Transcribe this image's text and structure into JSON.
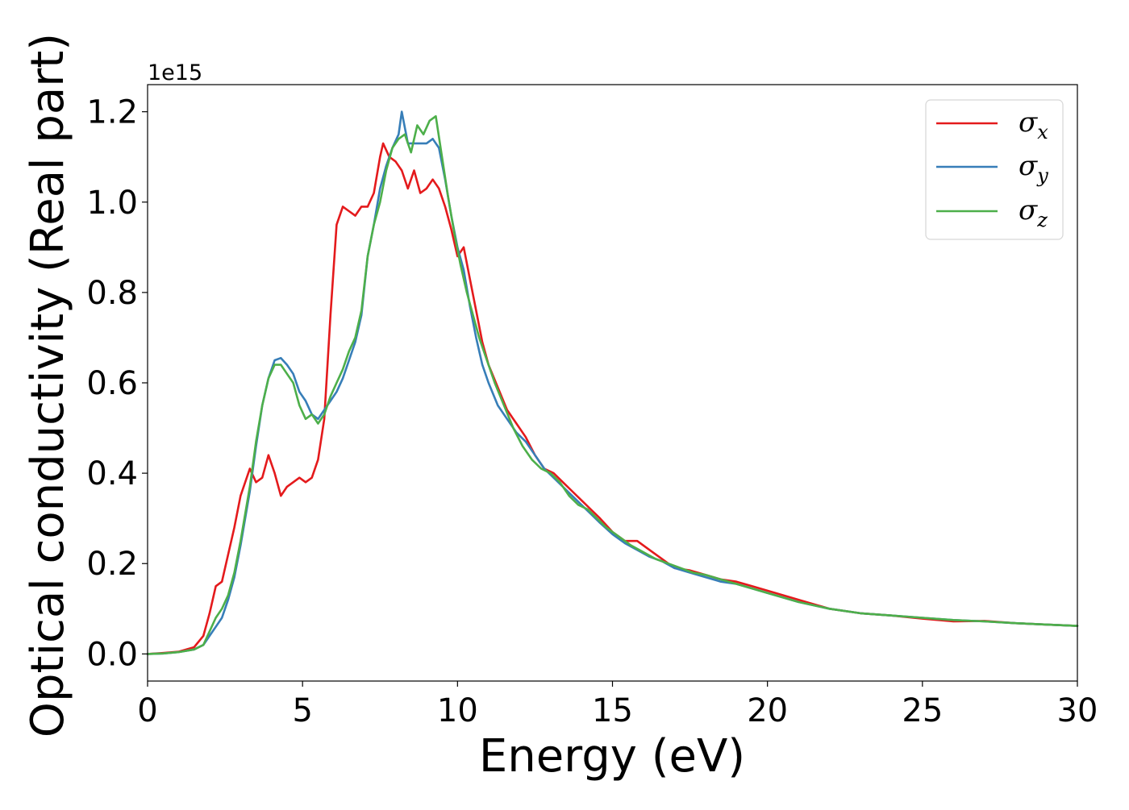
{
  "chart_data": {
    "type": "line",
    "xlabel": "Energy (eV)",
    "ylabel": "Optical conductivity (Real part)",
    "offset_text": "1e15",
    "xlim": [
      0,
      30
    ],
    "ylim": [
      -0.06,
      1.26
    ],
    "x_ticks": [
      0,
      5,
      10,
      15,
      20,
      25,
      30
    ],
    "x_tick_labels": [
      "0",
      "5",
      "10",
      "15",
      "20",
      "25",
      "30"
    ],
    "y_ticks": [
      0.0,
      0.2,
      0.4,
      0.6,
      0.8,
      1.0,
      1.2
    ],
    "y_tick_labels": [
      "0.0",
      "0.2",
      "0.4",
      "0.6",
      "0.8",
      "1.0",
      "1.2"
    ],
    "grid": false,
    "legend_position": "top-right",
    "series": [
      {
        "name": "σx",
        "symbol": "σ",
        "subscript": "x",
        "color": "#e41a1c",
        "x": [
          0,
          0.5,
          1.0,
          1.5,
          1.8,
          2.0,
          2.2,
          2.4,
          2.6,
          2.8,
          3.0,
          3.3,
          3.5,
          3.7,
          3.9,
          4.1,
          4.3,
          4.5,
          4.7,
          4.9,
          5.1,
          5.3,
          5.5,
          5.7,
          5.9,
          6.1,
          6.3,
          6.5,
          6.7,
          6.9,
          7.1,
          7.3,
          7.5,
          7.6,
          7.8,
          8.0,
          8.2,
          8.4,
          8.6,
          8.8,
          9.0,
          9.2,
          9.4,
          9.6,
          9.8,
          10.0,
          10.2,
          10.4,
          10.6,
          10.8,
          11.0,
          11.3,
          11.6,
          11.9,
          12.2,
          12.5,
          12.8,
          13.1,
          13.4,
          13.7,
          14.0,
          14.3,
          14.6,
          15.0,
          15.4,
          15.8,
          16.2,
          16.6,
          17.0,
          17.5,
          18.0,
          18.5,
          19.0,
          19.5,
          20.0,
          21.0,
          22.0,
          23.0,
          24.0,
          25.0,
          26.0,
          27.0,
          28.0,
          29.0,
          30.0
        ],
        "y": [
          0.0,
          0.002,
          0.005,
          0.015,
          0.04,
          0.09,
          0.15,
          0.16,
          0.22,
          0.28,
          0.35,
          0.41,
          0.38,
          0.39,
          0.44,
          0.4,
          0.35,
          0.37,
          0.38,
          0.39,
          0.38,
          0.39,
          0.43,
          0.52,
          0.75,
          0.95,
          0.99,
          0.98,
          0.97,
          0.99,
          0.99,
          1.02,
          1.1,
          1.13,
          1.1,
          1.09,
          1.07,
          1.03,
          1.07,
          1.02,
          1.03,
          1.05,
          1.03,
          0.99,
          0.94,
          0.88,
          0.9,
          0.83,
          0.76,
          0.69,
          0.64,
          0.59,
          0.54,
          0.51,
          0.48,
          0.44,
          0.41,
          0.4,
          0.38,
          0.36,
          0.34,
          0.32,
          0.3,
          0.27,
          0.25,
          0.25,
          0.23,
          0.21,
          0.19,
          0.185,
          0.175,
          0.165,
          0.16,
          0.15,
          0.14,
          0.12,
          0.1,
          0.09,
          0.085,
          0.078,
          0.072,
          0.073,
          0.068,
          0.065,
          0.062
        ]
      },
      {
        "name": "σy",
        "symbol": "σ",
        "subscript": "y",
        "color": "#377eb8",
        "x": [
          0,
          0.5,
          1.0,
          1.5,
          1.8,
          2.0,
          2.2,
          2.4,
          2.6,
          2.8,
          3.0,
          3.3,
          3.5,
          3.7,
          3.9,
          4.1,
          4.3,
          4.5,
          4.7,
          4.9,
          5.1,
          5.3,
          5.5,
          5.7,
          5.9,
          6.1,
          6.3,
          6.5,
          6.7,
          6.9,
          7.1,
          7.3,
          7.5,
          7.7,
          7.9,
          8.1,
          8.2,
          8.4,
          8.6,
          8.8,
          9.0,
          9.2,
          9.4,
          9.6,
          9.8,
          10.0,
          10.2,
          10.4,
          10.6,
          10.8,
          11.0,
          11.3,
          11.6,
          11.9,
          12.2,
          12.5,
          12.8,
          13.1,
          13.4,
          13.7,
          14.0,
          14.3,
          14.6,
          15.0,
          15.4,
          15.8,
          16.2,
          16.6,
          17.0,
          17.5,
          18.0,
          18.5,
          19.0,
          19.5,
          20.0,
          21.0,
          22.0,
          23.0,
          24.0,
          25.0,
          26.0,
          27.0,
          28.0,
          29.0,
          30.0
        ],
        "y": [
          0.0,
          0.001,
          0.004,
          0.01,
          0.02,
          0.04,
          0.06,
          0.08,
          0.12,
          0.17,
          0.24,
          0.36,
          0.46,
          0.55,
          0.61,
          0.65,
          0.655,
          0.64,
          0.62,
          0.58,
          0.56,
          0.53,
          0.52,
          0.54,
          0.56,
          0.58,
          0.61,
          0.65,
          0.69,
          0.75,
          0.88,
          0.95,
          1.03,
          1.08,
          1.12,
          1.15,
          1.2,
          1.13,
          1.13,
          1.13,
          1.13,
          1.14,
          1.12,
          1.05,
          0.97,
          0.9,
          0.85,
          0.77,
          0.7,
          0.64,
          0.6,
          0.55,
          0.52,
          0.49,
          0.47,
          0.44,
          0.41,
          0.39,
          0.37,
          0.35,
          0.33,
          0.31,
          0.29,
          0.265,
          0.245,
          0.23,
          0.215,
          0.205,
          0.19,
          0.18,
          0.17,
          0.16,
          0.155,
          0.145,
          0.135,
          0.115,
          0.1,
          0.09,
          0.085,
          0.08,
          0.075,
          0.072,
          0.068,
          0.065,
          0.062
        ]
      },
      {
        "name": "σz",
        "symbol": "σ",
        "subscript": "z",
        "color": "#4daf4a",
        "x": [
          0,
          0.5,
          1.0,
          1.5,
          1.8,
          2.0,
          2.2,
          2.4,
          2.6,
          2.8,
          3.0,
          3.3,
          3.5,
          3.7,
          3.9,
          4.1,
          4.3,
          4.5,
          4.7,
          4.9,
          5.1,
          5.3,
          5.5,
          5.7,
          5.9,
          6.1,
          6.3,
          6.5,
          6.7,
          6.9,
          7.1,
          7.3,
          7.5,
          7.7,
          7.9,
          8.1,
          8.3,
          8.5,
          8.7,
          8.9,
          9.1,
          9.3,
          9.5,
          9.7,
          9.9,
          10.1,
          10.3,
          10.5,
          10.7,
          10.9,
          11.2,
          11.5,
          11.8,
          12.1,
          12.4,
          12.7,
          13.0,
          13.3,
          13.6,
          13.9,
          14.2,
          14.5,
          14.8,
          15.2,
          15.6,
          16.0,
          16.4,
          16.8,
          17.2,
          17.6,
          18.0,
          18.5,
          19.0,
          19.5,
          20.0,
          21.0,
          22.0,
          23.0,
          24.0,
          25.0,
          26.0,
          27.0,
          28.0,
          29.0,
          30.0
        ],
        "y": [
          0.0,
          0.001,
          0.004,
          0.01,
          0.02,
          0.05,
          0.08,
          0.1,
          0.13,
          0.18,
          0.25,
          0.37,
          0.47,
          0.55,
          0.61,
          0.64,
          0.64,
          0.62,
          0.6,
          0.55,
          0.52,
          0.53,
          0.51,
          0.53,
          0.57,
          0.6,
          0.63,
          0.67,
          0.7,
          0.76,
          0.88,
          0.95,
          1.0,
          1.07,
          1.12,
          1.14,
          1.15,
          1.11,
          1.17,
          1.15,
          1.18,
          1.19,
          1.1,
          1.01,
          0.93,
          0.86,
          0.8,
          0.75,
          0.7,
          0.66,
          0.6,
          0.55,
          0.5,
          0.46,
          0.43,
          0.41,
          0.4,
          0.38,
          0.35,
          0.33,
          0.32,
          0.3,
          0.28,
          0.26,
          0.24,
          0.225,
          0.21,
          0.2,
          0.19,
          0.18,
          0.175,
          0.165,
          0.155,
          0.145,
          0.135,
          0.115,
          0.1,
          0.09,
          0.085,
          0.08,
          0.075,
          0.072,
          0.068,
          0.065,
          0.062
        ]
      }
    ]
  }
}
